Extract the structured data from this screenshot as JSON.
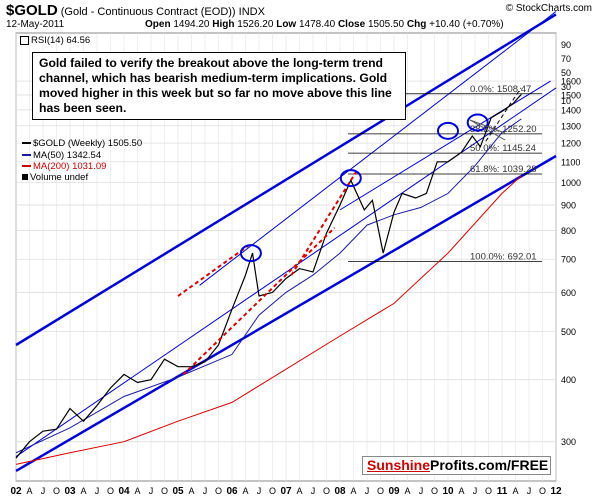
{
  "header": {
    "symbol": "$GOLD",
    "description": "(Gold - Continuous Contract (EOD)) INDX",
    "date": "12-May-2011",
    "open_label": "Open",
    "open": "1494.20",
    "high_label": "High",
    "high": "1526.20",
    "low_label": "Low",
    "low": "1478.40",
    "close_label": "Close",
    "close": "1505.50",
    "chg_label": "Chg",
    "chg": "+10.40 (+0.70%)",
    "copyright": "© StockCharts.com"
  },
  "rsi_label": "RSI(14) 64.56",
  "annotation": "Gold failed to verify the breakout above the long-term trend channel, which has bearish medium-term implications. Gold moved higher in this week but so far no move above this line has been seen.",
  "legend": [
    {
      "text": "$GOLD (Weekly) 1505.50",
      "color": "#000000"
    },
    {
      "text": "MA(50) 1342.54",
      "color": "#1a1aa0"
    },
    {
      "text": "MA(200) 1031.09",
      "color": "#cc0000"
    },
    {
      "text": "Volume undef",
      "color": "#000000"
    }
  ],
  "watermark": {
    "part1": "Sunshine",
    "part2": "Profits.com/FREE"
  },
  "colors": {
    "channel": "#0000dd",
    "ma50": "#1a1aa0",
    "ma200": "#dd0000",
    "price_up": "#000000",
    "price_down": "#cc0000",
    "fib": "#000000",
    "dashed": "#dd0000"
  },
  "chart_data": {
    "type": "line",
    "scale": "log",
    "ylim": [
      250,
      2000
    ],
    "rsi_ticks": [
      "90",
      "70",
      "50",
      "30",
      "10"
    ],
    "price_ticks": [
      1600,
      1500,
      1400,
      1300,
      1200,
      1100,
      1000,
      900,
      800,
      700,
      600,
      500,
      400,
      300
    ],
    "x_labels": [
      "02",
      "A",
      "J",
      "O",
      "03",
      "A",
      "J",
      "O",
      "04",
      "A",
      "J",
      "O",
      "05",
      "A",
      "J",
      "O",
      "06",
      "A",
      "J",
      "O",
      "07",
      "A",
      "J",
      "O",
      "08",
      "A",
      "J",
      "O",
      "09",
      "A",
      "J",
      "O",
      "10",
      "A",
      "J",
      "O",
      "11",
      "A",
      "J",
      "O",
      "12"
    ],
    "x_start": 2002.0,
    "x_end": 2012.0,
    "fibonacci": [
      {
        "label": "0.0%: 1508.47",
        "value": 1508.47
      },
      {
        "label": "38.2%: 1252.20",
        "value": 1252.2
      },
      {
        "label": "50.0%: 1145.24",
        "value": 1145.24
      },
      {
        "label": "61.8%: 1039.28",
        "value": 1039.28
      },
      {
        "label": "100.0%: 692.01",
        "value": 692.01
      }
    ],
    "series": [
      {
        "name": "$GOLD (Weekly)",
        "values": [
          [
            2002.0,
            278
          ],
          [
            2002.25,
            300
          ],
          [
            2002.5,
            315
          ],
          [
            2002.75,
            318
          ],
          [
            2003.0,
            350
          ],
          [
            2003.25,
            330
          ],
          [
            2003.5,
            355
          ],
          [
            2003.75,
            385
          ],
          [
            2004.0,
            410
          ],
          [
            2004.25,
            395
          ],
          [
            2004.5,
            400
          ],
          [
            2004.75,
            440
          ],
          [
            2005.0,
            425
          ],
          [
            2005.25,
            425
          ],
          [
            2005.5,
            435
          ],
          [
            2005.75,
            470
          ],
          [
            2006.0,
            555
          ],
          [
            2006.25,
            650
          ],
          [
            2006.38,
            720
          ],
          [
            2006.5,
            590
          ],
          [
            2006.75,
            600
          ],
          [
            2007.0,
            640
          ],
          [
            2007.25,
            670
          ],
          [
            2007.5,
            660
          ],
          [
            2007.75,
            790
          ],
          [
            2008.0,
            900
          ],
          [
            2008.2,
            1010
          ],
          [
            2008.45,
            880
          ],
          [
            2008.6,
            920
          ],
          [
            2008.8,
            720
          ],
          [
            2009.0,
            870
          ],
          [
            2009.15,
            950
          ],
          [
            2009.4,
            930
          ],
          [
            2009.6,
            950
          ],
          [
            2009.8,
            1100
          ],
          [
            2010.0,
            1100
          ],
          [
            2010.25,
            1150
          ],
          [
            2010.45,
            1240
          ],
          [
            2010.6,
            1180
          ],
          [
            2010.8,
            1350
          ],
          [
            2011.0,
            1390
          ],
          [
            2011.2,
            1440
          ],
          [
            2011.36,
            1505
          ]
        ]
      },
      {
        "name": "MA(50)",
        "values": [
          [
            2002.0,
            285
          ],
          [
            2003.0,
            320
          ],
          [
            2004.0,
            370
          ],
          [
            2005.0,
            405
          ],
          [
            2006.0,
            450
          ],
          [
            2006.5,
            540
          ],
          [
            2007.0,
            600
          ],
          [
            2007.5,
            650
          ],
          [
            2008.0,
            720
          ],
          [
            2008.5,
            820
          ],
          [
            2009.0,
            860
          ],
          [
            2009.5,
            890
          ],
          [
            2010.0,
            950
          ],
          [
            2010.5,
            1080
          ],
          [
            2011.0,
            1260
          ],
          [
            2011.36,
            1342.54
          ]
        ]
      },
      {
        "name": "MA(200)",
        "values": [
          [
            2002.0,
            270
          ],
          [
            2003.0,
            285
          ],
          [
            2004.0,
            300
          ],
          [
            2005.0,
            330
          ],
          [
            2006.0,
            360
          ],
          [
            2007.0,
            420
          ],
          [
            2008.0,
            490
          ],
          [
            2009.0,
            570
          ],
          [
            2010.0,
            720
          ],
          [
            2011.0,
            950
          ],
          [
            2011.36,
            1031.09
          ]
        ]
      }
    ],
    "channel_lines": [
      {
        "from": [
          2002.0,
          470
        ],
        "to": [
          2012.0,
          2180
        ]
      },
      {
        "from": [
          2002.0,
          262
        ],
        "to": [
          2012.0,
          1130
        ]
      },
      {
        "from": [
          2005.4,
          620
        ],
        "to": [
          2012.0,
          2210
        ]
      },
      {
        "from": [
          2008.0,
          880
        ],
        "to": [
          2011.9,
          1600
        ]
      },
      {
        "from": [
          2002.0,
          280
        ],
        "to": [
          2012.0,
          1550
        ]
      }
    ],
    "dashed_lines": [
      {
        "from": [
          2005.0,
          590
        ],
        "to": [
          2006.3,
          745
        ]
      },
      {
        "from": [
          2005.1,
          410
        ],
        "to": [
          2007.9,
          810
        ]
      },
      {
        "from": [
          2007.1,
          650
        ],
        "to": [
          2008.3,
          1050
        ]
      },
      {
        "from": [
          2010.7,
          1210
        ],
        "to": [
          2011.35,
          1550
        ]
      }
    ],
    "circles": [
      [
        2006.35,
        720
      ],
      [
        2008.2,
        1020
      ],
      [
        2010.0,
        1270
      ],
      [
        2010.55,
        1320
      ]
    ]
  }
}
